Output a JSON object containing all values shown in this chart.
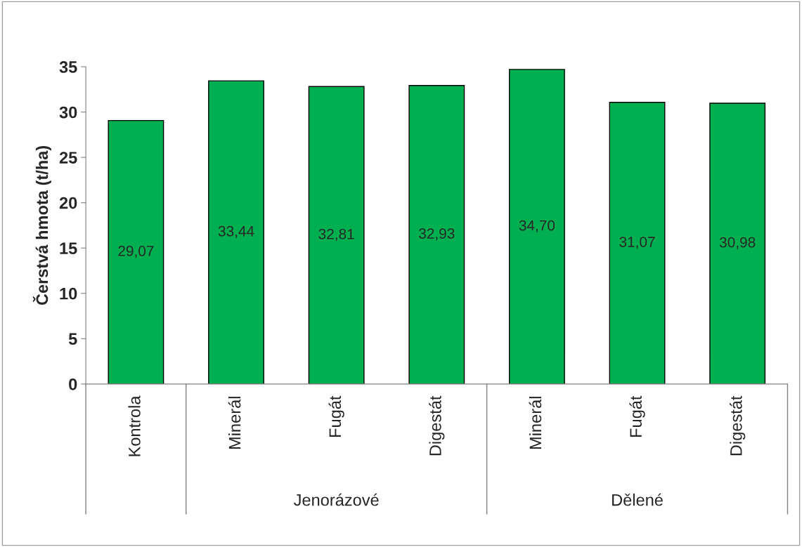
{
  "chart_data": {
    "type": "bar",
    "ylabel": "Čerstvá hmota (t/ha)",
    "categories": [
      "Kontrola",
      "Minerál",
      "Fugát",
      "Digestát",
      "Minerál",
      "Fugát",
      "Digestát"
    ],
    "values": [
      29.07,
      33.44,
      32.81,
      32.93,
      34.7,
      31.07,
      30.98
    ],
    "value_labels": [
      "29,07",
      "33,44",
      "32,81",
      "32,93",
      "34,70",
      "31,07",
      "30,98"
    ],
    "color": "#00b050",
    "ylim": [
      0,
      35
    ],
    "yticks": [
      0,
      5,
      10,
      15,
      20,
      25,
      30,
      35
    ],
    "annotations": [
      "Jenorázové",
      "Dělené"
    ],
    "grid": false,
    "legend": false
  }
}
